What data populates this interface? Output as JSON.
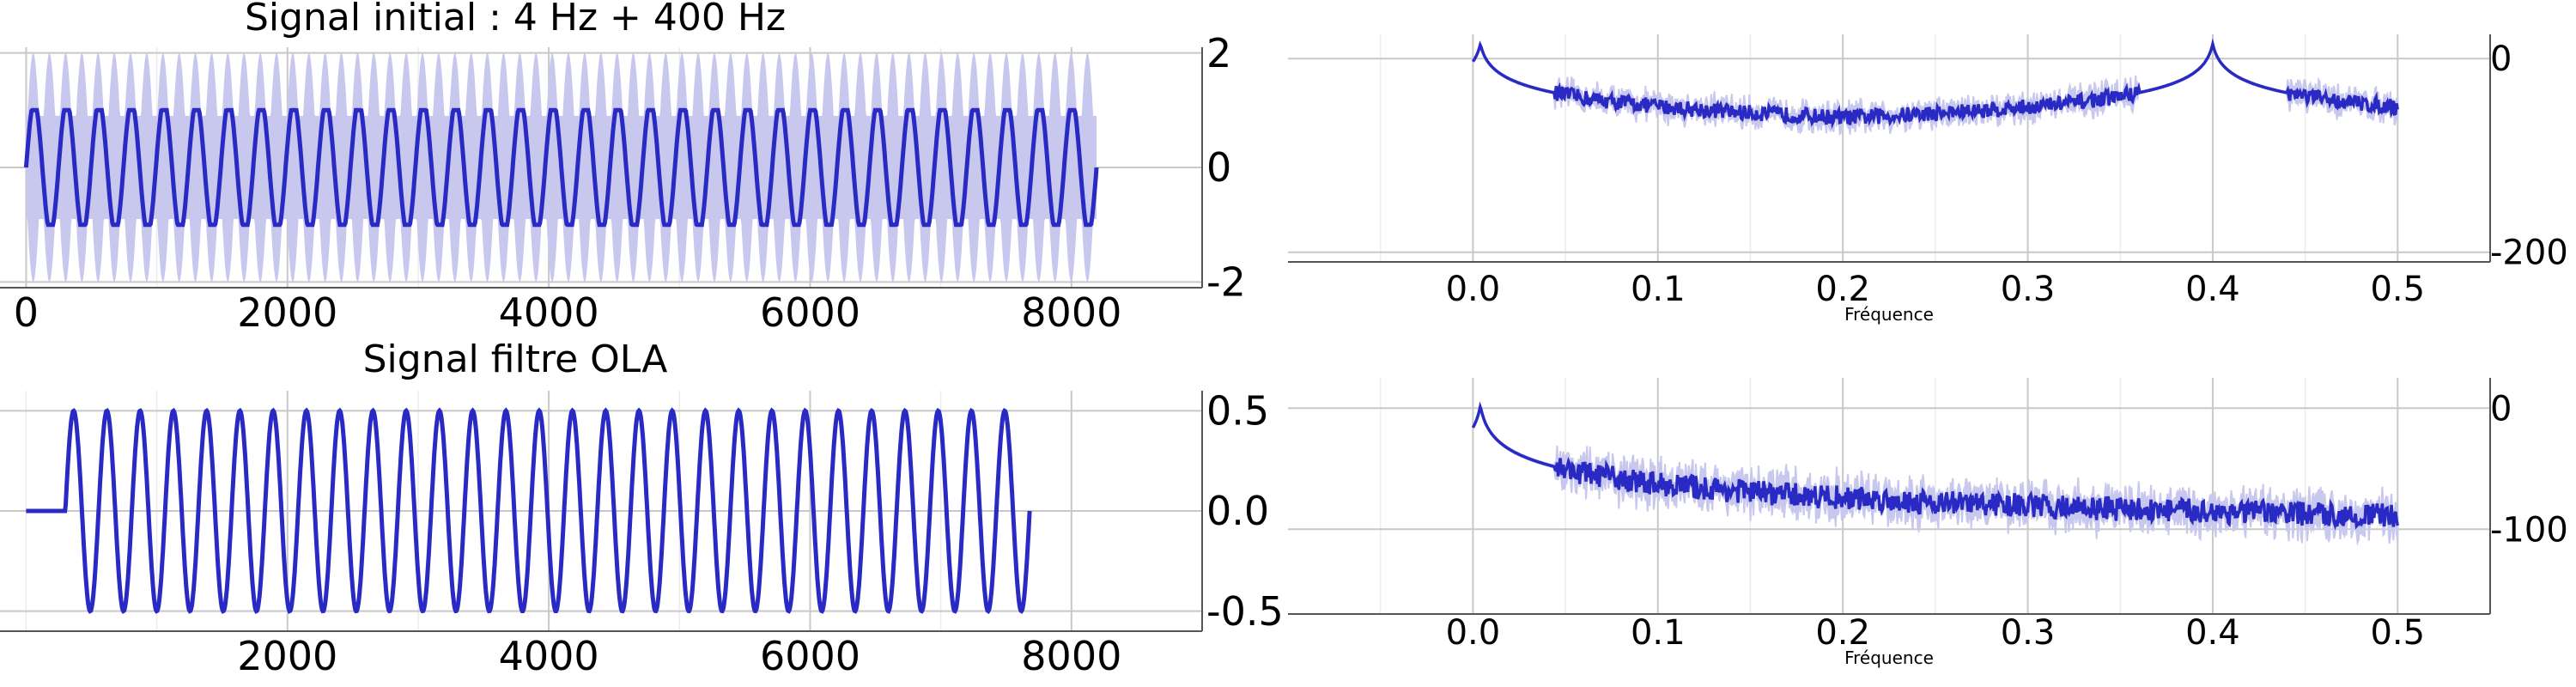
{
  "colors": {
    "line": "#2929c4",
    "band": "#c8c8ee",
    "grid_major": "#c8c8c8",
    "grid_minor": "#ececec",
    "axis": "#555555"
  },
  "chart_data": [
    {
      "id": "p1",
      "type": "line",
      "title": "Signal initial : 4 Hz + 400 Hz",
      "xlabel": "",
      "ylabel": "",
      "xlim": [
        -200,
        9000
      ],
      "ylim": [
        -2.1,
        2.1
      ],
      "xticks": [
        0,
        2000,
        4000,
        6000,
        8000
      ],
      "xtick_labels": [
        "0",
        "2000",
        "4000",
        "6000",
        "8000"
      ],
      "yticks": [
        2,
        0,
        -2
      ],
      "ytick_labels": [
        "2",
        "0",
        "-2"
      ],
      "yaxis": "right",
      "grid": true,
      "series": [
        {
          "role": "raw-band",
          "x_range": [
            0,
            8192
          ],
          "amplitude": 2.0,
          "cycles": 33
        },
        {
          "role": "low-freq-component",
          "x_range": [
            0,
            8192
          ],
          "amplitude": 1.0,
          "cycles": 33
        }
      ]
    },
    {
      "id": "p2",
      "type": "line",
      "title": "",
      "xlabel": "Fréquence",
      "ylabel": "",
      "xlim": [
        -0.1,
        0.55
      ],
      "ylim": [
        -210,
        25
      ],
      "xticks": [
        0.0,
        0.1,
        0.2,
        0.3,
        0.4,
        0.5
      ],
      "xtick_labels": [
        "0.0",
        "0.1",
        "0.2",
        "0.3",
        "0.4",
        "0.5"
      ],
      "yticks": [
        0,
        -200
      ],
      "ytick_labels": [
        "0",
        "-200"
      ],
      "yaxis": "right",
      "grid": true,
      "series": [
        {
          "role": "spectrum",
          "x_range": [
            0.0,
            0.5
          ],
          "peaks": [
            [
              0.004,
              15
            ],
            [
              0.4,
              15
            ]
          ],
          "floor": -140,
          "noise": 8
        }
      ]
    },
    {
      "id": "p3",
      "type": "line",
      "title": "Signal filtre OLA",
      "xlabel": "",
      "ylabel": "",
      "xlim": [
        -200,
        9000
      ],
      "ylim": [
        -0.6,
        0.6
      ],
      "xticks": [
        2000,
        4000,
        6000,
        8000
      ],
      "xtick_labels": [
        "2000",
        "4000",
        "6000",
        "8000"
      ],
      "yticks": [
        0.5,
        0.0,
        -0.5
      ],
      "ytick_labels": [
        "0.5",
        "0.0",
        "-0.5"
      ],
      "yaxis": "right",
      "grid": true,
      "series": [
        {
          "role": "filtered",
          "x_range": [
            0,
            7680
          ],
          "flat_until": 300,
          "amplitude": 0.5,
          "cycles": 29
        }
      ]
    },
    {
      "id": "p4",
      "type": "line",
      "title": "",
      "xlabel": "Fréquence",
      "ylabel": "",
      "xlim": [
        -0.1,
        0.55
      ],
      "ylim": [
        -170,
        25
      ],
      "xticks": [
        0.0,
        0.1,
        0.2,
        0.3,
        0.4,
        0.5
      ],
      "xtick_labels": [
        "0.0",
        "0.1",
        "0.2",
        "0.3",
        "0.4",
        "0.5"
      ],
      "yticks": [
        0,
        -100
      ],
      "ytick_labels": [
        "0",
        "-100"
      ],
      "yaxis": "right",
      "grid": true,
      "series": [
        {
          "role": "spectrum",
          "x_range": [
            0.0,
            0.5
          ],
          "peaks": [
            [
              0.004,
              2
            ]
          ],
          "floor": -140,
          "noise": 10
        }
      ]
    }
  ]
}
